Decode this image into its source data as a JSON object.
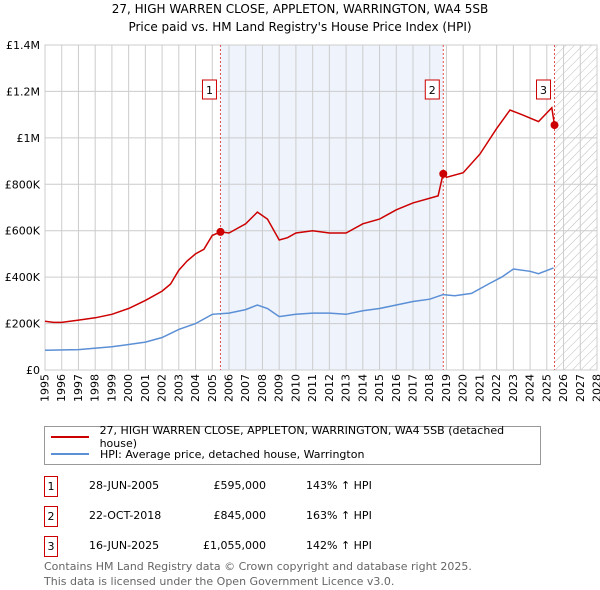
{
  "chart_data": {
    "type": "line",
    "title": "27, HIGH WARREN CLOSE, APPLETON, WARRINGTON, WA4 5SB",
    "subtitle": "Price paid vs. HM Land Registry's House Price Index (HPI)",
    "xlim": [
      1995,
      2028
    ],
    "ylim": [
      0,
      1400000
    ],
    "x_ticks": [
      "1995",
      "1996",
      "1997",
      "1998",
      "1999",
      "2000",
      "2001",
      "2002",
      "2003",
      "2004",
      "2005",
      "2006",
      "2007",
      "2008",
      "2009",
      "2010",
      "2011",
      "2012",
      "2013",
      "2014",
      "2015",
      "2016",
      "2017",
      "2018",
      "2019",
      "2020",
      "2021",
      "2022",
      "2023",
      "2024",
      "2025",
      "2026",
      "2027",
      "2028"
    ],
    "y_ticks": [
      {
        "v": 0,
        "label": "£0"
      },
      {
        "v": 200000,
        "label": "£200K"
      },
      {
        "v": 400000,
        "label": "£400K"
      },
      {
        "v": 600000,
        "label": "£600K"
      },
      {
        "v": 800000,
        "label": "£800K"
      },
      {
        "v": 1000000,
        "label": "£1M"
      },
      {
        "v": 1200000,
        "label": "£1.2M"
      },
      {
        "v": 1400000,
        "label": "£1.4M"
      }
    ],
    "grid": true,
    "series": [
      {
        "name": "27, HIGH WARREN CLOSE, APPLETON, WARRINGTON, WA4 5SB (detached house)",
        "color": "#cc0000",
        "x": [
          1995,
          1995.5,
          1996,
          1997,
          1998,
          1999,
          2000,
          2001,
          2002,
          2002.5,
          2003,
          2003.5,
          2004,
          2004.5,
          2005,
          2005.5,
          2006,
          2007,
          2007.7,
          2008.3,
          2009,
          2009.5,
          2010,
          2011,
          2012,
          2013,
          2014,
          2015,
          2016,
          2017,
          2018.5,
          2018.8,
          2019,
          2020,
          2021,
          2022,
          2022.8,
          2023.5,
          2024.5,
          2025.3,
          2025.46
        ],
        "y": [
          210000,
          205000,
          205000,
          215000,
          225000,
          240000,
          265000,
          300000,
          340000,
          370000,
          430000,
          470000,
          500000,
          520000,
          580000,
          595000,
          590000,
          630000,
          680000,
          650000,
          560000,
          570000,
          590000,
          600000,
          590000,
          590000,
          630000,
          650000,
          690000,
          720000,
          750000,
          845000,
          830000,
          850000,
          930000,
          1040000,
          1120000,
          1100000,
          1070000,
          1130000,
          1055000
        ]
      },
      {
        "name": "HPI: Average price, detached house, Warrington",
        "color": "#5b8fd6",
        "x": [
          1995,
          1997,
          1999,
          2000,
          2001,
          2002,
          2003,
          2004,
          2005,
          2006,
          2007,
          2007.7,
          2008.3,
          2009,
          2010,
          2011,
          2012,
          2013,
          2014,
          2015,
          2016,
          2017,
          2018,
          2018.8,
          2019.5,
          2020.5,
          2021.5,
          2022.3,
          2023,
          2024,
          2024.5,
          2025.4
        ],
        "y": [
          85000,
          88000,
          100000,
          110000,
          120000,
          140000,
          175000,
          200000,
          240000,
          245000,
          260000,
          280000,
          265000,
          230000,
          240000,
          245000,
          245000,
          240000,
          255000,
          265000,
          280000,
          295000,
          305000,
          325000,
          320000,
          330000,
          370000,
          400000,
          435000,
          425000,
          415000,
          440000
        ]
      }
    ],
    "sales": [
      {
        "n": "1",
        "x": 2005.49,
        "price": 595000,
        "date": "28-JUN-2005",
        "price_label": "£595,000",
        "hpi": "143% ↑ HPI"
      },
      {
        "n": "2",
        "x": 2018.81,
        "price": 845000,
        "date": "22-OCT-2018",
        "price_label": "£845,000",
        "hpi": "163% ↑ HPI"
      },
      {
        "n": "3",
        "x": 2025.46,
        "price": 1055000,
        "date": "16-JUN-2025",
        "price_label": "£1,055,000",
        "hpi": "142% ↑ HPI"
      }
    ],
    "shaded_range": [
      2005.49,
      2018.81
    ],
    "hatched_from": 2025.46
  },
  "footer": [
    "Contains HM Land Registry data © Crown copyright and database right 2025.",
    "This data is licensed under the Open Government Licence v3.0."
  ]
}
